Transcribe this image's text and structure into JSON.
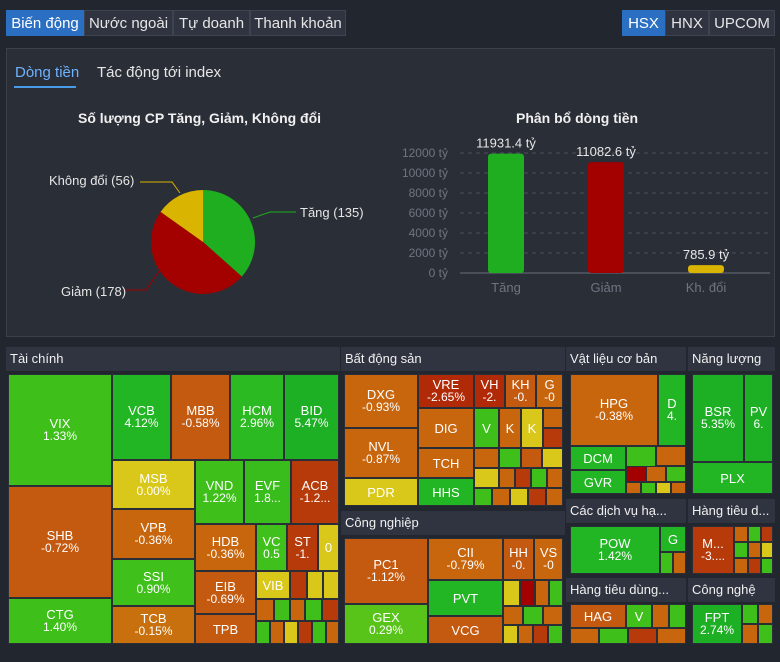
{
  "tabs": [
    {
      "label": "Biến động",
      "active": true
    },
    {
      "label": "Nước ngoài",
      "active": false
    },
    {
      "label": "Tự doanh",
      "active": false
    },
    {
      "label": "Thanh khoản",
      "active": false
    }
  ],
  "exchanges": [
    {
      "label": "HSX",
      "active": true
    },
    {
      "label": "HNX",
      "active": false
    },
    {
      "label": "UPCOM",
      "active": false
    }
  ],
  "subtabs": [
    {
      "label": "Dòng tiền",
      "active": true
    },
    {
      "label": "Tác động tới index",
      "active": false
    }
  ],
  "colors": {
    "up": "#1fae1f",
    "down": "#a30000",
    "flat": "#d9b400"
  },
  "pie": {
    "title": "Số lượng CP Tăng, Giảm, Không đổi",
    "labels": {
      "up": "Tăng (135)",
      "down": "Giảm (178)",
      "flat": "Không đổi (56)"
    },
    "chart_data": {
      "type": "pie",
      "categories": [
        "Tăng",
        "Giảm",
        "Không đổi"
      ],
      "values": [
        135,
        178,
        56
      ]
    }
  },
  "bar": {
    "title": "Phân bổ dòng tiền",
    "chart_data": {
      "type": "bar",
      "categories": [
        "Tăng",
        "Giảm",
        "Kh. đổi"
      ],
      "values": [
        11931.4,
        11082.6,
        785.9
      ],
      "value_labels": [
        "11931.4 tỷ",
        "11082.6 tỷ",
        "785.9 tỷ"
      ],
      "yticks": [
        "0 tỷ",
        "2000 tỷ",
        "4000 tỷ",
        "6000 tỷ",
        "8000 tỷ",
        "10000 tỷ",
        "12000 tỷ"
      ],
      "ylim": [
        0,
        12000
      ]
    }
  },
  "sectors": {
    "taichinh": "Tài chính",
    "bds": "Bất động sản",
    "congnghiep": "Công nghiệp",
    "vlcb": "Vật liệu cơ bản",
    "nangluong": "Năng lượng",
    "dichvu": "Các dịch vụ hạ...",
    "htd1": "Hàng tiêu d...",
    "htd2": "Hàng tiêu dùng...",
    "congnghe": "Công nghệ"
  },
  "stocks": {
    "VIX": {
      "s": "VIX",
      "c": "1.33%"
    },
    "VCB": {
      "s": "VCB",
      "c": "4.12%"
    },
    "MBB": {
      "s": "MBB",
      "c": "-0.58%"
    },
    "HCM": {
      "s": "HCM",
      "c": "2.96%"
    },
    "BID": {
      "s": "BID",
      "c": "5.47%"
    },
    "MSB": {
      "s": "MSB",
      "c": "0.00%"
    },
    "VND": {
      "s": "VND",
      "c": "1.22%"
    },
    "EVF": {
      "s": "EVF",
      "c": "1.8..."
    },
    "ACB": {
      "s": "ACB",
      "c": "-1.2..."
    },
    "SHB": {
      "s": "SHB",
      "c": "-0.72%"
    },
    "VPB": {
      "s": "VPB",
      "c": "-0.36%"
    },
    "HDB": {
      "s": "HDB",
      "c": "-0.36%"
    },
    "VC": {
      "s": "VC",
      "c": "0.5"
    },
    "ST": {
      "s": "ST",
      "c": "-1."
    },
    "Z0": {
      "s": "0",
      "c": ""
    },
    "SSI": {
      "s": "SSI",
      "c": "0.90%"
    },
    "EIB": {
      "s": "EIB",
      "c": "-0.69%"
    },
    "VIB": {
      "s": "VIB",
      "c": ""
    },
    "CTG": {
      "s": "CTG",
      "c": "1.40%"
    },
    "TCB": {
      "s": "TCB",
      "c": "-0.15%"
    },
    "TPB": {
      "s": "TPB",
      "c": ""
    },
    "DXG": {
      "s": "DXG",
      "c": "-0.93%"
    },
    "VRE": {
      "s": "VRE",
      "c": "-2.65%"
    },
    "VH": {
      "s": "VH",
      "c": "-2."
    },
    "KH": {
      "s": "KH",
      "c": "-0."
    },
    "G": {
      "s": "G",
      "c": "-0"
    },
    "NVL": {
      "s": "NVL",
      "c": "-0.87%"
    },
    "DIG": {
      "s": "DIG",
      "c": ""
    },
    "V1": {
      "s": "V",
      "c": ""
    },
    "K1": {
      "s": "K",
      "c": ""
    },
    "K2": {
      "s": "K",
      "c": ""
    },
    "TCH": {
      "s": "TCH",
      "c": ""
    },
    "PDR": {
      "s": "PDR",
      "c": ""
    },
    "HHS": {
      "s": "HHS",
      "c": ""
    },
    "PC1": {
      "s": "PC1",
      "c": "-1.12%"
    },
    "CII": {
      "s": "CII",
      "c": "-0.79%"
    },
    "HH": {
      "s": "HH",
      "c": "-0."
    },
    "VS": {
      "s": "VS",
      "c": "-0"
    },
    "PVT": {
      "s": "PVT",
      "c": ""
    },
    "GEX": {
      "s": "GEX",
      "c": "0.29%"
    },
    "VCG": {
      "s": "VCG",
      "c": ""
    },
    "HPG": {
      "s": "HPG",
      "c": "-0.38%"
    },
    "D": {
      "s": "D",
      "c": "4."
    },
    "DCM": {
      "s": "DCM",
      "c": ""
    },
    "GVR": {
      "s": "GVR",
      "c": ""
    },
    "BSR": {
      "s": "BSR",
      "c": "5.35%"
    },
    "PV": {
      "s": "PV",
      "c": "6."
    },
    "PLX": {
      "s": "PLX",
      "c": ""
    },
    "POW": {
      "s": "POW",
      "c": "1.42%"
    },
    "G2": {
      "s": "G",
      "c": ""
    },
    "M": {
      "s": "M...",
      "c": "-3...."
    },
    "HAG": {
      "s": "HAG",
      "c": ""
    },
    "V2": {
      "s": "V",
      "c": ""
    },
    "FPT": {
      "s": "FPT",
      "c": "2.74%"
    }
  }
}
